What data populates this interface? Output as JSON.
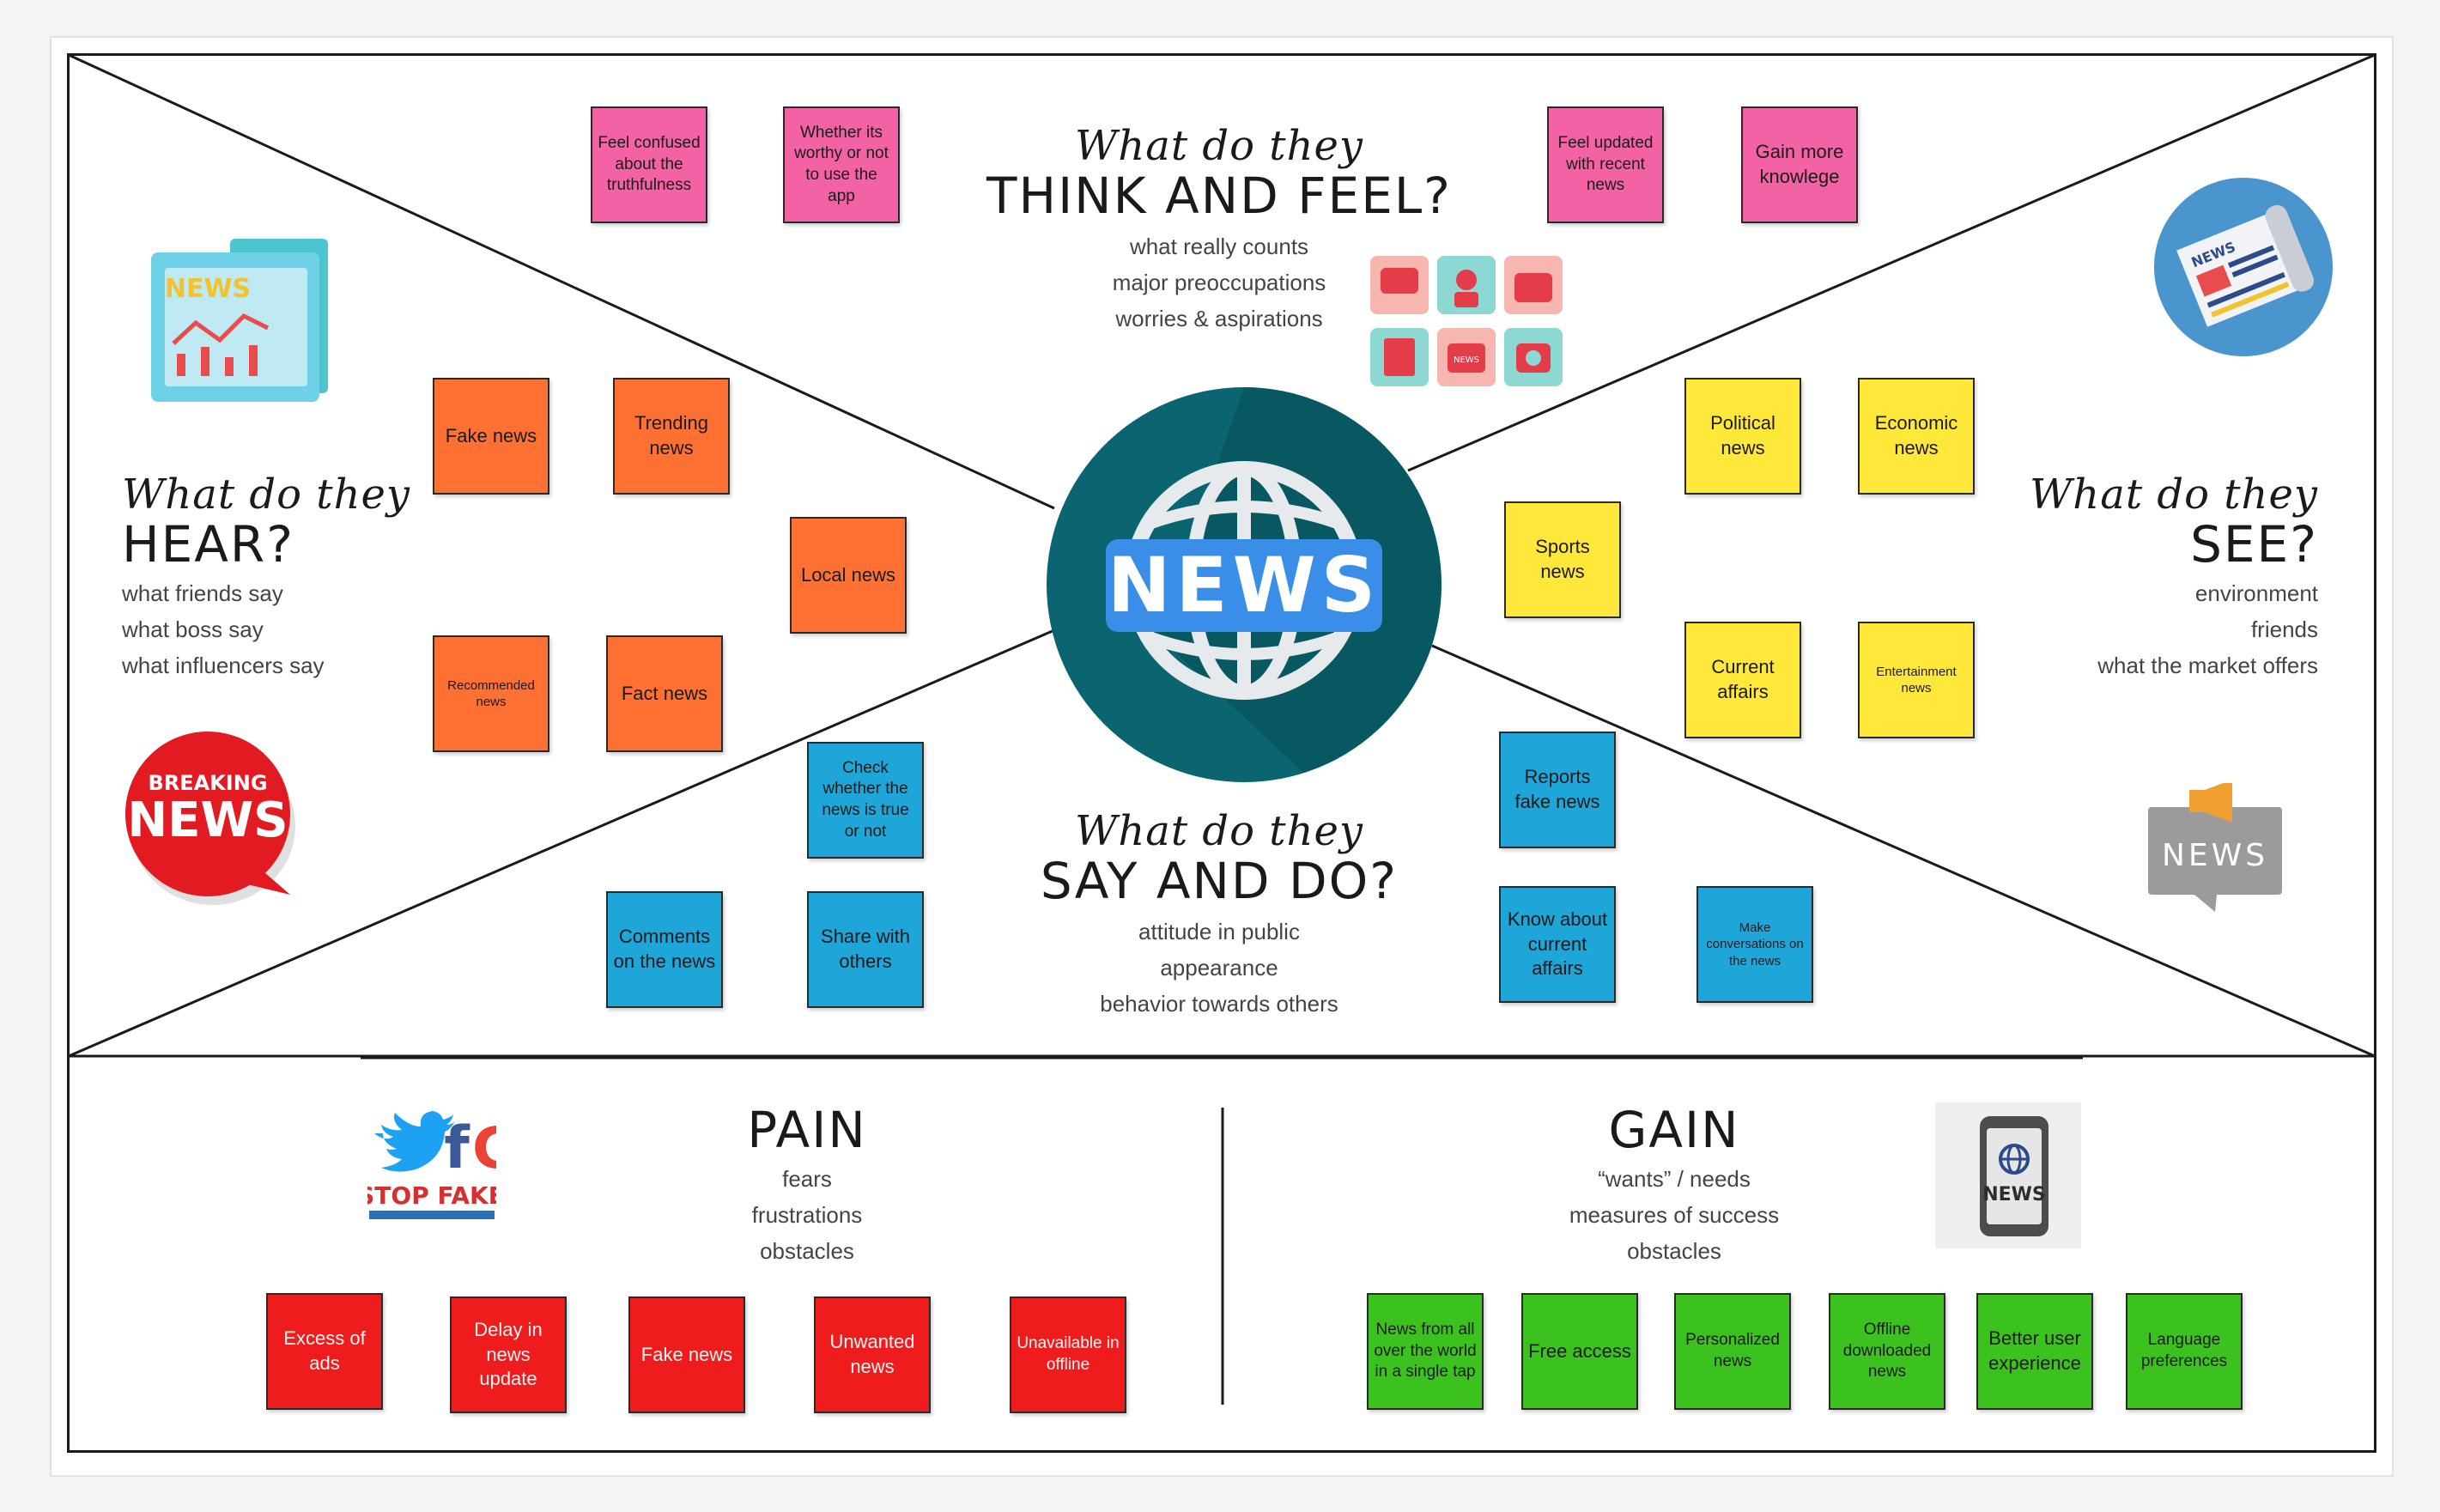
{
  "think_feel": {
    "script": "What do they",
    "heading": "THINK AND FEEL?",
    "lines": [
      "what really counts",
      "major preoccupations",
      "worries & aspirations"
    ],
    "notes": [
      "Feel confused about the truthfulness",
      "Whether its worthy or not to use the app",
      "Feel updated with recent news",
      "Gain more knowlege"
    ]
  },
  "hear": {
    "script": "What do they",
    "heading": "HEAR?",
    "lines": [
      "what friends say",
      "what boss say",
      "what influencers say"
    ],
    "notes": [
      "Fake news",
      "Trending news",
      "Local news",
      "Recommended news",
      "Fact news"
    ]
  },
  "see": {
    "script": "What do they",
    "heading": "SEE?",
    "lines": [
      "environment",
      "friends",
      "what the market offers"
    ],
    "notes": [
      "Political news",
      "Economic news",
      "Sports news",
      "Current affairs",
      "Entertainment news"
    ]
  },
  "say_do": {
    "script": "What do they",
    "heading": "SAY AND DO?",
    "lines": [
      "attitude in public",
      "appearance",
      "behavior towards others"
    ],
    "notes": [
      "Check whether the news is true or not",
      "Comments on the news",
      "Share with others",
      "Reports fake news",
      "Know about current affairs",
      "Make conversations on the news"
    ]
  },
  "pain": {
    "heading": "PAIN",
    "lines": [
      "fears",
      "frustrations",
      "obstacles"
    ],
    "notes": [
      "Excess of ads",
      "Delay in news update",
      "Fake news",
      "Unwanted news",
      "Unavailable in offline"
    ]
  },
  "gain": {
    "heading": "GAIN",
    "lines": [
      "“wants” / needs",
      "measures of success",
      "obstacles"
    ],
    "notes": [
      "News from all over the world in a single tap",
      "Free access",
      "Personalized news",
      "Offline downloaded news",
      "Better user experience",
      "Language preferences"
    ]
  },
  "center_logo": {
    "label": "NEWS"
  },
  "images": {
    "newspaper_top_left": "NEWS",
    "breaking_news": {
      "top": "BREAKING",
      "bottom": "NEWS"
    },
    "news_sign": "NEWS",
    "newspaper_roll": "NEWS",
    "stop_fake": "STOP FAKE",
    "phone_news": "NEWS",
    "icon_grid": "NEWS"
  },
  "colors": {
    "pink": "#f462a6",
    "orange": "#ff7133",
    "yellow": "#ffe83a",
    "blue": "#1ea6d8",
    "red": "#ee1c1c",
    "green": "#3cc21e",
    "globe_teal": "#0b6570",
    "badge_blue": "#3b8ee8"
  }
}
